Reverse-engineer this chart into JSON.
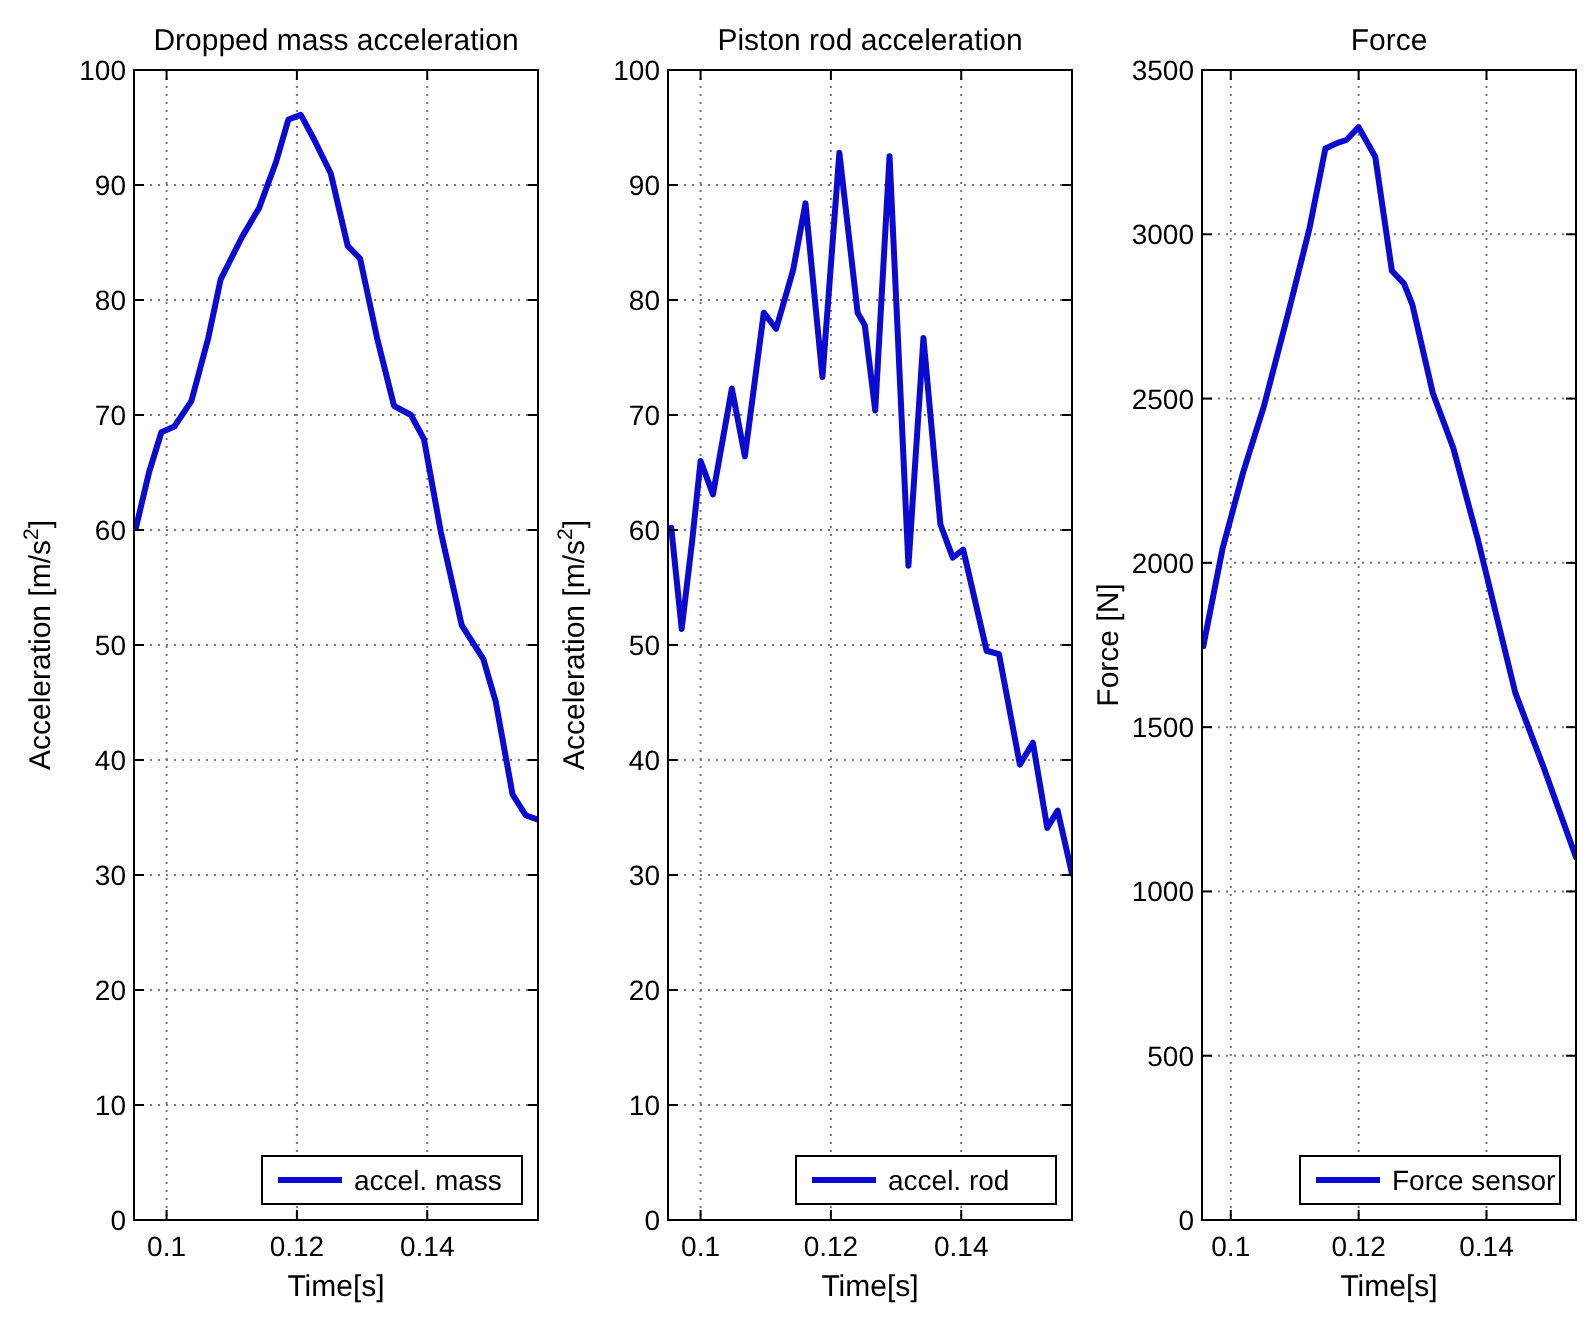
{
  "chart_data": [
    {
      "type": "line",
      "title": "Dropped mass acceleration",
      "xlabel": "Time[s]",
      "ylabel": "Acceleration [m/s$^{2}$]",
      "xlim": [
        0.095,
        0.157
      ],
      "xticks": [
        0.1,
        0.12,
        0.14
      ],
      "ylim": [
        0,
        100
      ],
      "yticks": [
        0,
        10,
        20,
        30,
        40,
        50,
        60,
        70,
        80,
        90,
        100
      ],
      "grid": true,
      "legend": "bottom right",
      "x": [
        0.0953,
        0.0973,
        0.0992,
        0.1012,
        0.1038,
        0.1064,
        0.1083,
        0.1116,
        0.1142,
        0.1168,
        0.1187,
        0.1206,
        0.1226,
        0.1252,
        0.1278,
        0.1297,
        0.1323,
        0.1349,
        0.1375,
        0.1395,
        0.1421,
        0.1453,
        0.1486,
        0.1505,
        0.1531,
        0.1551,
        0.157
      ],
      "series": [
        {
          "name": "accel. mass",
          "color": "#0a0ad2",
          "values": [
            60.2,
            65,
            68.5,
            69,
            71.2,
            76.7,
            81.8,
            85.5,
            88,
            92,
            95.7,
            96.1,
            94,
            91,
            84.7,
            83.6,
            76.7,
            70.8,
            70,
            67.9,
            59.8,
            51.7,
            48.8,
            45.1,
            37,
            35.2,
            34.8
          ]
        }
      ]
    },
    {
      "type": "line",
      "title": "Piston rod acceleration",
      "xlabel": "Time[s]",
      "ylabel": "Acceleration [m/s$^{2}$]",
      "xlim": [
        0.095,
        0.157
      ],
      "xticks": [
        0.1,
        0.12,
        0.14
      ],
      "ylim": [
        0,
        100
      ],
      "yticks": [
        0,
        10,
        20,
        30,
        40,
        50,
        60,
        70,
        80,
        90,
        100
      ],
      "grid": true,
      "legend": "bottom right",
      "x": [
        0.0955,
        0.0971,
        0.0987,
        0.1,
        0.1019,
        0.1048,
        0.1068,
        0.1097,
        0.1116,
        0.1142,
        0.1161,
        0.1187,
        0.1213,
        0.1241,
        0.1252,
        0.1268,
        0.129,
        0.1319,
        0.1342,
        0.1368,
        0.1387,
        0.1403,
        0.1439,
        0.1458,
        0.149,
        0.151,
        0.1532,
        0.1548,
        0.157
      ],
      "series": [
        {
          "name": "accel. rod",
          "color": "#0a0ad2",
          "values": [
            60.2,
            51.4,
            59,
            66,
            63.1,
            72.3,
            66.4,
            78.9,
            77.5,
            82.6,
            88.4,
            73.3,
            92.8,
            78.9,
            77.8,
            70.4,
            92.5,
            56.9,
            76.7,
            60.5,
            57.6,
            58.3,
            49.5,
            49.2,
            39.6,
            41.5,
            34.1,
            35.6,
            30.1
          ]
        }
      ]
    },
    {
      "type": "line",
      "title": "Force",
      "xlabel": "Time[s]",
      "ylabel": "Force [N]",
      "xlim": [
        0.0955,
        0.154
      ],
      "xticks": [
        0.1,
        0.12,
        0.14
      ],
      "ylim": [
        0,
        3500
      ],
      "yticks": [
        0,
        500,
        1000,
        1500,
        2000,
        2500,
        3000,
        3500
      ],
      "grid": true,
      "legend": "bottom right",
      "x": [
        0.0957,
        0.0987,
        0.1019,
        0.1052,
        0.109,
        0.1123,
        0.1148,
        0.1168,
        0.1181,
        0.12,
        0.1226,
        0.1252,
        0.1271,
        0.1284,
        0.1316,
        0.1348,
        0.1387,
        0.1445,
        0.149,
        0.154
      ],
      "series": [
        {
          "name": "Force sensor",
          "color": "#0a0ad2",
          "values": [
            1746,
            2042,
            2273,
            2478,
            2761,
            3017,
            3261,
            3279,
            3287,
            3326,
            3236,
            2889,
            2850,
            2786,
            2517,
            2350,
            2067,
            1605,
            1374,
            1104
          ]
        }
      ]
    }
  ]
}
